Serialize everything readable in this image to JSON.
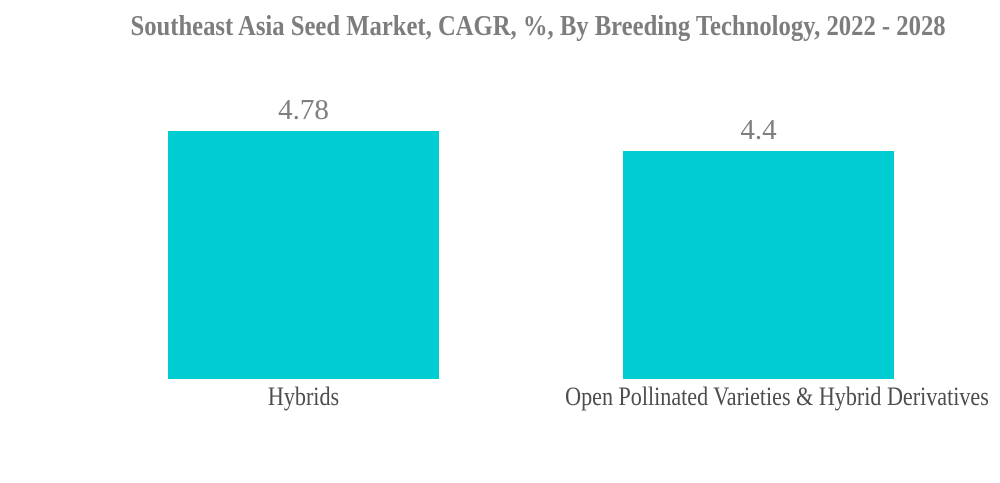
{
  "chart_data": {
    "type": "bar",
    "title": "Southeast Asia Seed Market, CAGR, %, By Breeding Technology, 2022 - 2028",
    "categories": [
      "Hybrids",
      "Open Pollinated Varieties & Hybrid Derivatives"
    ],
    "values": [
      4.78,
      4.4
    ],
    "value_labels": [
      "4.78",
      "4.4"
    ],
    "xlabel": "",
    "ylabel": "",
    "ylim": [
      0,
      4.78
    ],
    "grid": false,
    "legend": false,
    "axes_visible": false,
    "colors": {
      "bar": "#00CDD1",
      "title": "#7D7D7D",
      "value_label": "#7F7F7F",
      "category_label": "#4D4D4D",
      "background": "#FFFFFF"
    }
  }
}
